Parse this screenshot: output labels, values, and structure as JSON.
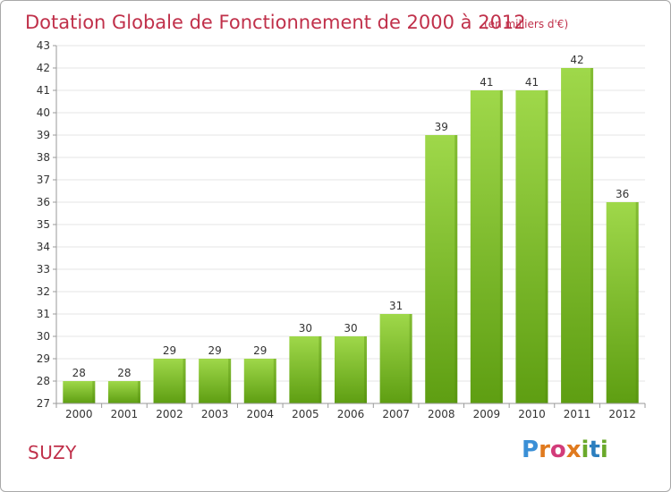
{
  "title": "Dotation Globale de Fonctionnement de 2000 à 2012",
  "unit_note": "(en milliers d'€)",
  "commune": "SUZY",
  "logo": {
    "text": "Proxiti",
    "letters": [
      "P",
      "r",
      "o",
      "x",
      "i",
      "t",
      "i"
    ]
  },
  "colors": {
    "bar_light": "#9fd84a",
    "bar_dark": "#5e9e12",
    "title": "#c0304a"
  },
  "chart_data": {
    "type": "bar",
    "title": "Dotation Globale de Fonctionnement de 2000 à 2012",
    "subtitle": "(en milliers d'€)",
    "categories": [
      "2000",
      "2001",
      "2002",
      "2003",
      "2004",
      "2005",
      "2006",
      "2007",
      "2008",
      "2009",
      "2010",
      "2011",
      "2012"
    ],
    "values": [
      28,
      28,
      29,
      29,
      29,
      30,
      30,
      31,
      39,
      41,
      41,
      42,
      36
    ],
    "data_labels": [
      "28",
      "28",
      "29",
      "29",
      "29",
      "30",
      "30",
      "31",
      "39",
      "41",
      "41",
      "42",
      "36"
    ],
    "xlabel": "",
    "ylabel": "",
    "ylim": [
      27,
      43
    ],
    "yticks": [
      "27",
      "28",
      "29",
      "30",
      "31",
      "32",
      "33",
      "34",
      "35",
      "36",
      "37",
      "38",
      "39",
      "40",
      "41",
      "42",
      "43"
    ],
    "grid": true,
    "legend": "none"
  }
}
